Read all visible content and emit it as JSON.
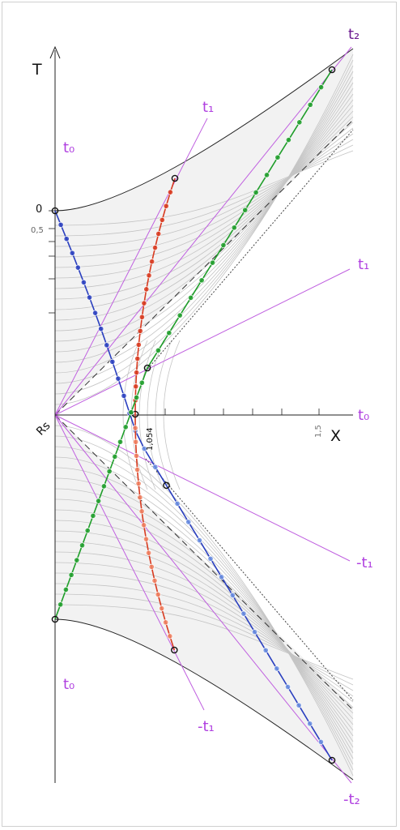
{
  "axis": {
    "t_label": "T",
    "x_label": "X",
    "origin_label": "Rs"
  },
  "tick_labels": {
    "zero": "0",
    "half": "0,5",
    "x_min": "1,054",
    "x_max": "1,5"
  },
  "time_labels": {
    "t0_upper_left": "t₀",
    "t1_upper": "t₁",
    "t2_top": "t₂",
    "t1_right": "t₁",
    "t0_right": "t₀",
    "minus_t1_right": "-t₁",
    "t0_lower_left": "t₀",
    "minus_t1_lower": "-t₁",
    "minus_t2_bottom": "-t₂"
  },
  "colors": {
    "geodesic_blue": "#2a3fbf",
    "geodesic_red": "#d83a1f",
    "geodesic_green": "#1f9e2a",
    "time_lines": "#c060e0",
    "labels_purple": "#b040e0",
    "shaded_region": "#f2f2f2",
    "grid_curves": "#bdbdbd"
  }
}
